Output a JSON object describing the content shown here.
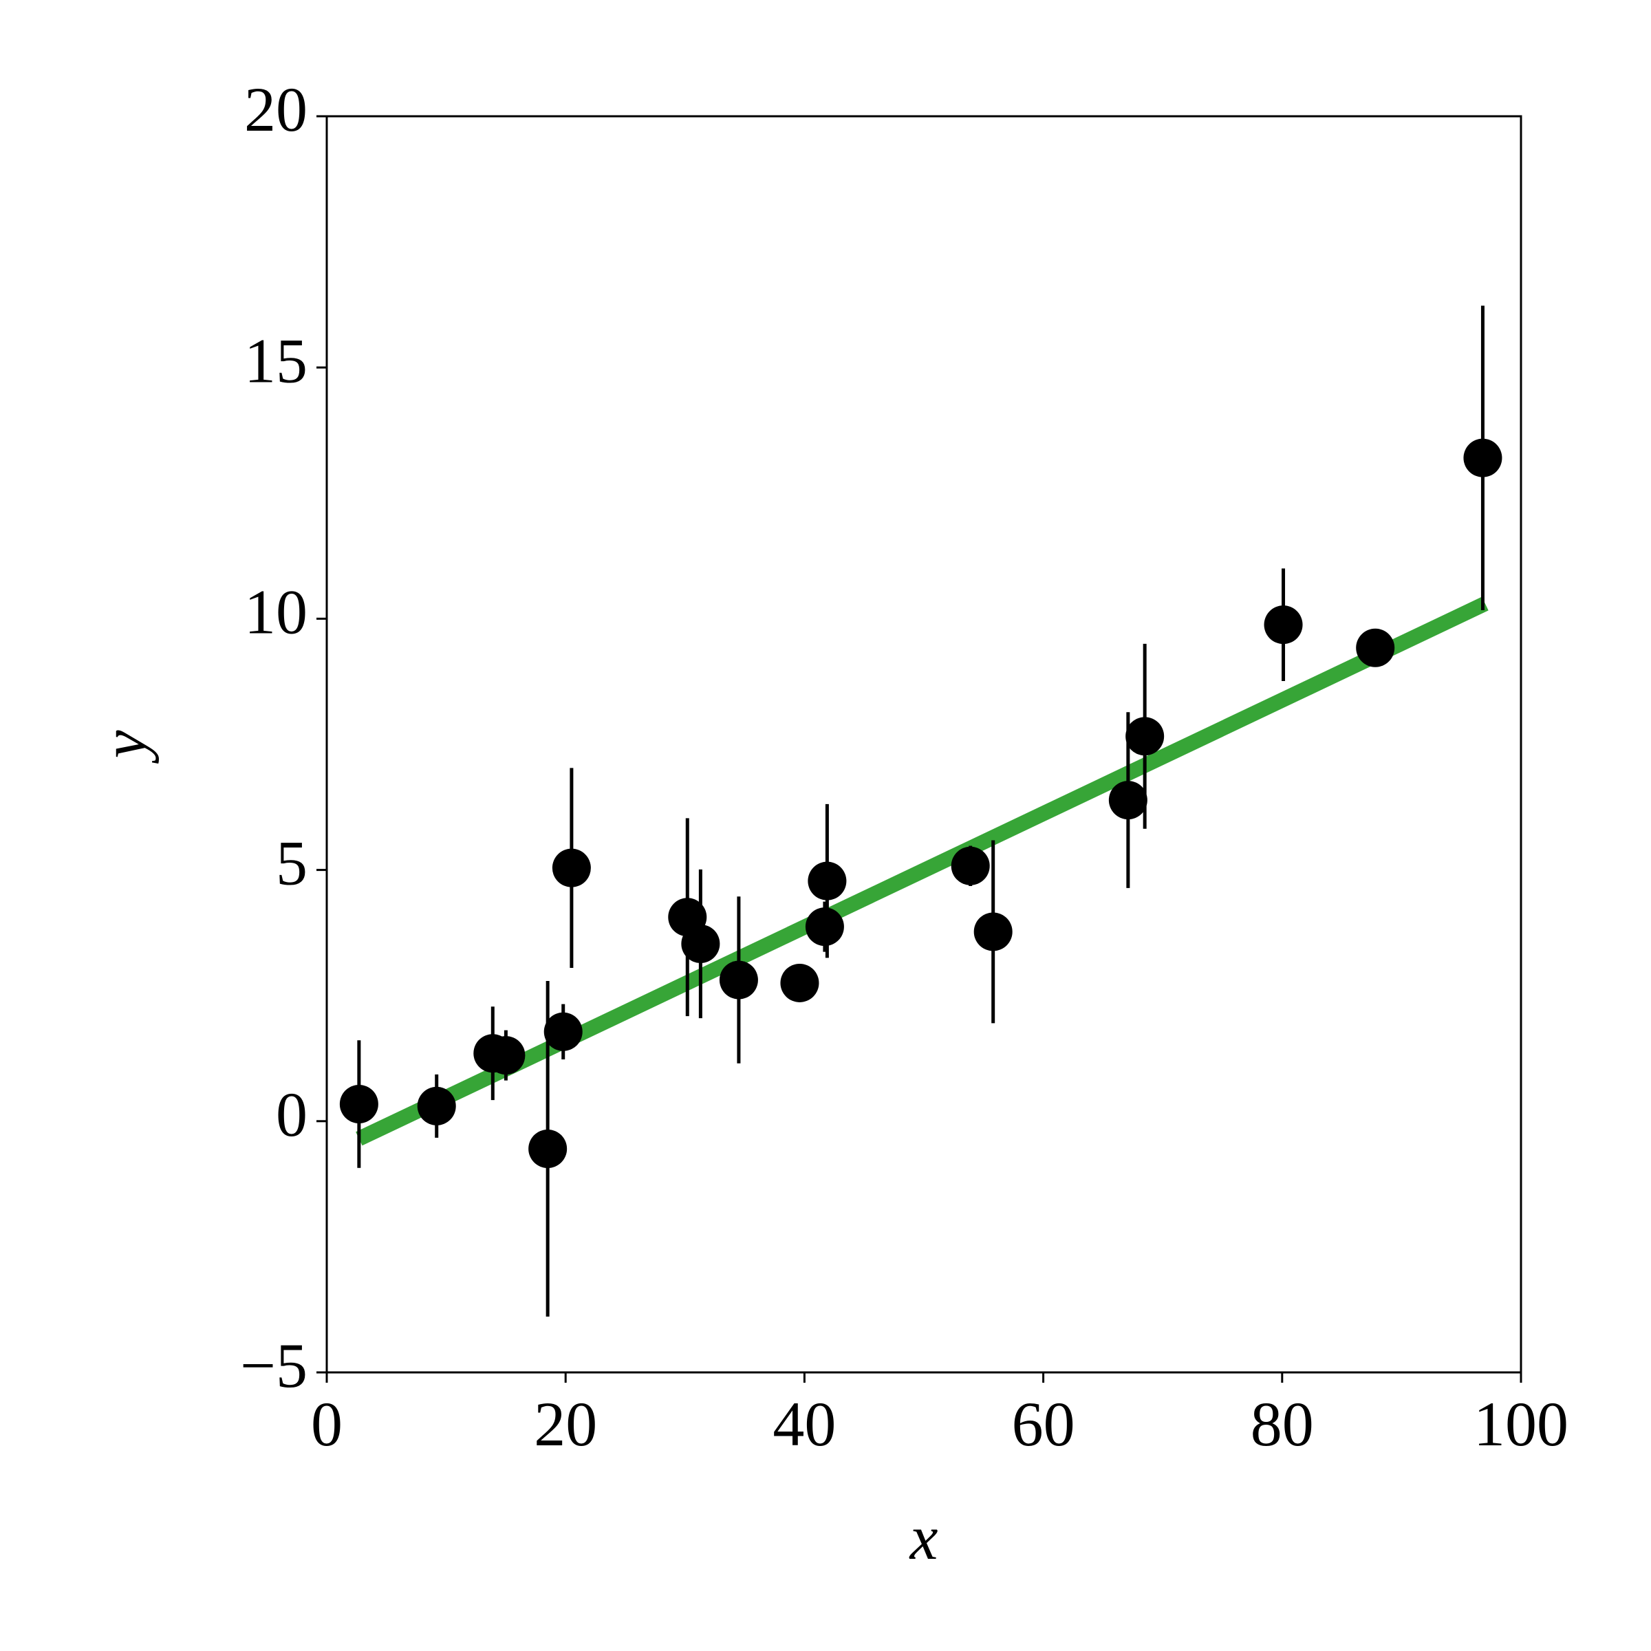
{
  "chart_data": {
    "type": "scatter",
    "x_label": "x",
    "y_label": "y",
    "x": [
      2.7,
      9.2,
      13.9,
      15.0,
      18.5,
      19.8,
      20.5,
      30.2,
      31.3,
      34.5,
      39.6,
      41.9,
      41.7,
      53.9,
      55.8,
      67.1,
      68.5,
      80.1,
      87.8,
      96.8
    ],
    "y": [
      0.34,
      0.3,
      1.35,
      1.31,
      -0.55,
      1.78,
      5.04,
      4.06,
      3.53,
      2.81,
      2.75,
      4.78,
      3.87,
      5.08,
      3.77,
      6.39,
      7.66,
      9.88,
      9.42,
      13.2
    ],
    "yerr": [
      1.27,
      0.63,
      0.93,
      0.5,
      3.34,
      0.55,
      1.99,
      1.97,
      1.48,
      1.66,
      0.3,
      1.53,
      0.5,
      0.4,
      1.82,
      1.75,
      1.84,
      1.12,
      0.3,
      3.03
    ],
    "color": "#000000",
    "fit": {
      "x": [
        2.7,
        97
      ],
      "y": [
        -0.35,
        10.3
      ],
      "color": "#2ca02c"
    },
    "xlim": [
      0,
      100
    ],
    "xticks": [
      0,
      20,
      40,
      60,
      80,
      100
    ],
    "ylim": [
      -5,
      20
    ],
    "yticks": [
      {
        "value": -5,
        "label": "−5"
      },
      0,
      5,
      10,
      15,
      20
    ],
    "grid": false
  }
}
